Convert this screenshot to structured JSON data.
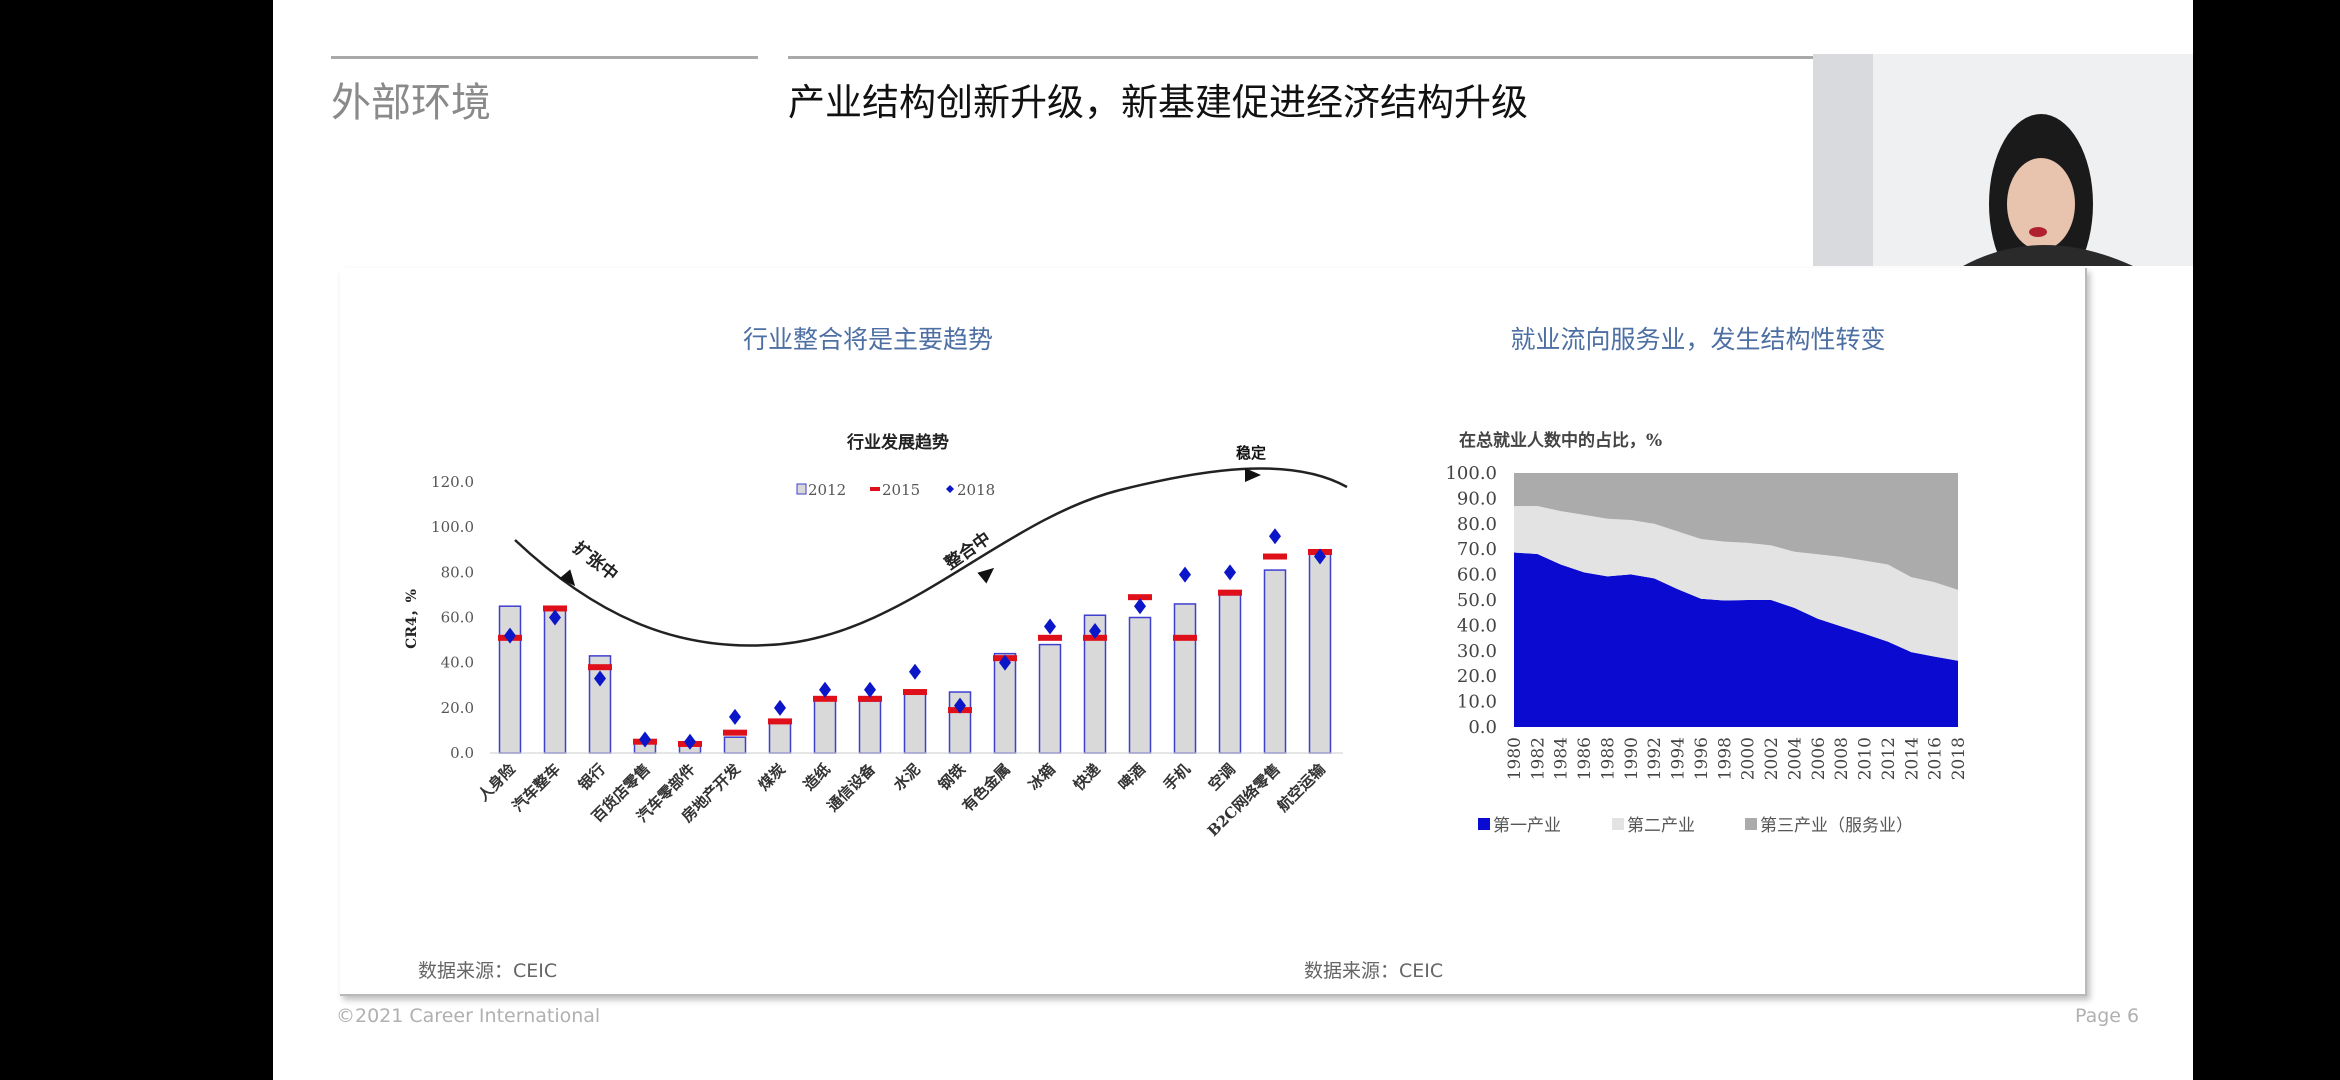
{
  "header": {
    "section": "外部环境",
    "title": "产业结构创新升级，新基建促进经济结构升级"
  },
  "left_panel": {
    "title": "行业整合将是主要趋势",
    "source": "数据来源：CEIC"
  },
  "right_panel": {
    "title": "就业流向服务业，发生结构性转变",
    "source": "数据来源：CEIC"
  },
  "footer": {
    "copyright": "©2021 Career International",
    "page": "Page 6"
  },
  "webcam": {
    "icon": "video-participant"
  },
  "colors": {
    "bar_fill": "#d9d9d9",
    "bar_border": "#3f3fd0",
    "marker_2015": "#e0101b",
    "marker_2018": "#0b16c8",
    "primary": "#0a0ad0",
    "secondary": "#e3e3e3",
    "tertiary": "#ababab",
    "title_blue": "#4d6fa3"
  },
  "chart_data": [
    {
      "type": "bar",
      "title": "行业发展趋势",
      "ylabel": "CR4，%",
      "xlabel": "",
      "ylim": [
        0,
        120
      ],
      "yticks": [
        "0.0",
        "20.0",
        "40.0",
        "60.0",
        "80.0",
        "100.0",
        "120.0"
      ],
      "legend": [
        "2012",
        "2015",
        "2018"
      ],
      "legend_position": "top-center",
      "annotations": [
        "扩张中",
        "整合中",
        "稳定"
      ],
      "categories": [
        "人身险",
        "汽车整车",
        "银行",
        "百货店零售",
        "汽车零部件",
        "房地产开发",
        "煤炭",
        "造纸",
        "通信设备",
        "水泥",
        "钢铁",
        "有色金属",
        "冰箱",
        "快递",
        "啤酒",
        "手机",
        "空调",
        "B2C网络零售",
        "航空运输"
      ],
      "series": [
        {
          "name": "2012",
          "kind": "bar",
          "values": [
            65,
            64,
            43,
            5,
            4,
            7,
            14,
            24,
            23,
            27,
            27,
            44,
            48,
            61,
            60,
            66,
            70,
            81,
            90
          ]
        },
        {
          "name": "2015",
          "kind": "dash",
          "values": [
            51,
            64,
            38,
            5,
            4,
            9,
            14,
            24,
            24,
            27,
            19,
            42,
            51,
            51,
            69,
            51,
            71,
            87,
            89
          ]
        },
        {
          "name": "2018",
          "kind": "diamond",
          "values": [
            52,
            60,
            33,
            6,
            5,
            16,
            20,
            28,
            28,
            36,
            21,
            40,
            56,
            54,
            65,
            79,
            80,
            96,
            87
          ]
        }
      ]
    },
    {
      "type": "area",
      "stacked": true,
      "title": "在总就业人数中的占比，%",
      "ylim": [
        0,
        100
      ],
      "yticks": [
        "0.0",
        "10.0",
        "20.0",
        "30.0",
        "40.0",
        "50.0",
        "60.0",
        "70.0",
        "80.0",
        "90.0",
        "100.0"
      ],
      "x": [
        "1980",
        "1982",
        "1984",
        "1986",
        "1988",
        "1990",
        "1992",
        "1994",
        "1996",
        "1998",
        "2000",
        "2002",
        "2004",
        "2006",
        "2008",
        "2010",
        "2012",
        "2014",
        "2016",
        "2018"
      ],
      "legend_position": "bottom",
      "series": [
        {
          "name": "第一产业",
          "values": [
            68.7,
            68.1,
            64.0,
            60.9,
            59.3,
            60.1,
            58.5,
            54.3,
            50.5,
            49.8,
            50.0,
            50.0,
            46.9,
            42.6,
            39.6,
            36.7,
            33.6,
            29.5,
            27.7,
            26.1
          ]
        },
        {
          "name": "第二产业",
          "values": [
            18.3,
            18.9,
            21.0,
            22.6,
            22.7,
            21.4,
            21.5,
            22.7,
            23.5,
            23.2,
            22.5,
            21.5,
            22.1,
            25.4,
            27.4,
            28.8,
            30.4,
            29.5,
            29.3,
            27.9
          ]
        },
        {
          "name": "第三产业（服务业）",
          "values": [
            13.0,
            13.0,
            15.0,
            16.5,
            18.0,
            18.5,
            20.0,
            23.0,
            26.0,
            27.0,
            27.5,
            28.5,
            31.0,
            32.0,
            33.0,
            34.5,
            36.0,
            41.0,
            43.0,
            46.0
          ]
        }
      ]
    }
  ]
}
